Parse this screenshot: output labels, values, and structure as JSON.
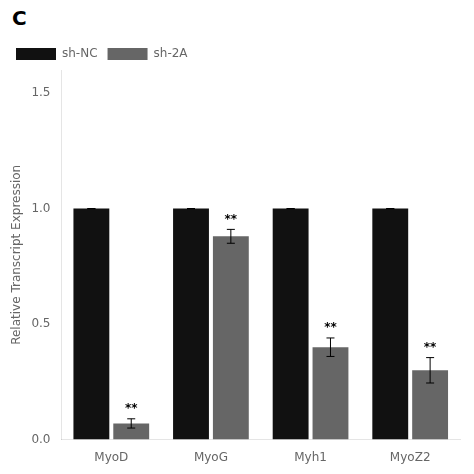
{
  "chart_data": {
    "type": "bar",
    "categories": [
      "MyoD",
      "MyoG",
      "Myh1",
      "MyoZ2"
    ],
    "series": [
      {
        "name": "sh-NC",
        "color": "#111111",
        "values": [
          1.0,
          1.0,
          1.0,
          1.0
        ],
        "errors": [
          0.0,
          0.0,
          0.0,
          0.0
        ]
      },
      {
        "name": "sh-2A",
        "color": "#666666",
        "values": [
          0.07,
          0.88,
          0.4,
          0.3
        ],
        "errors": [
          0.02,
          0.03,
          0.04,
          0.055
        ],
        "significance": [
          "**",
          "**",
          "**",
          "**"
        ]
      }
    ],
    "ylabel": "Relative Transcript Expression",
    "ylim": [
      0,
      1.6
    ],
    "yticks": [
      {
        "value": 0.0,
        "label": "0.0"
      },
      0.5,
      {
        "value": 1.0,
        "label": "1.0"
      },
      1.5
    ],
    "annotations": [
      {
        "text": "C"
      }
    ],
    "legend": "upper left",
    "grid": false
  }
}
